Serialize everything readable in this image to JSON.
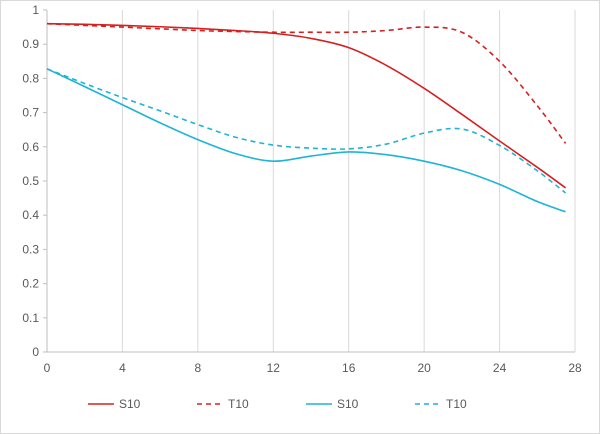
{
  "chart_data": {
    "type": "line",
    "title": "",
    "xlabel": "",
    "ylabel": "",
    "xlim": [
      0,
      28
    ],
    "ylim": [
      0,
      1
    ],
    "x_ticks": [
      "0",
      "4",
      "8",
      "12",
      "16",
      "20",
      "24",
      "28"
    ],
    "y_ticks": [
      "0",
      "0.1",
      "0.2",
      "0.3",
      "0.4",
      "0.5",
      "0.6",
      "0.7",
      "0.8",
      "0.9",
      "1"
    ],
    "grid": "vertical",
    "legend": "bottom",
    "series": [
      {
        "name": "S10",
        "color": "#d62020",
        "dash": false,
        "x": [
          0,
          2,
          4,
          6,
          8,
          10,
          12,
          14,
          16,
          18,
          20,
          22,
          24,
          26,
          27.5
        ],
        "y": [
          0.96,
          0.958,
          0.955,
          0.951,
          0.946,
          0.94,
          0.932,
          0.917,
          0.89,
          0.838,
          0.771,
          0.695,
          0.617,
          0.54,
          0.48
        ]
      },
      {
        "name": "T10",
        "color": "#d62020",
        "dash": true,
        "x": [
          0,
          2,
          4,
          6,
          8,
          10,
          12,
          14,
          16,
          18,
          20,
          22,
          24,
          26,
          27.5
        ],
        "y": [
          0.96,
          0.955,
          0.95,
          0.945,
          0.94,
          0.937,
          0.935,
          0.935,
          0.935,
          0.94,
          0.95,
          0.935,
          0.85,
          0.72,
          0.61
        ]
      },
      {
        "name": "S10",
        "color": "#1fb3d6",
        "dash": false,
        "x": [
          0,
          2,
          4,
          6,
          8,
          10,
          12,
          14,
          16,
          18,
          20,
          22,
          24,
          26,
          27.5
        ],
        "y": [
          0.828,
          0.776,
          0.723,
          0.67,
          0.621,
          0.58,
          0.558,
          0.573,
          0.585,
          0.577,
          0.558,
          0.53,
          0.49,
          0.44,
          0.41
        ]
      },
      {
        "name": "T10",
        "color": "#1fb3d6",
        "dash": true,
        "x": [
          0,
          2,
          4,
          6,
          8,
          10,
          12,
          14,
          16,
          18,
          20,
          22,
          24,
          26,
          27.5
        ],
        "y": [
          0.828,
          0.785,
          0.744,
          0.705,
          0.665,
          0.628,
          0.605,
          0.596,
          0.594,
          0.608,
          0.64,
          0.652,
          0.604,
          0.53,
          0.465
        ]
      }
    ]
  }
}
